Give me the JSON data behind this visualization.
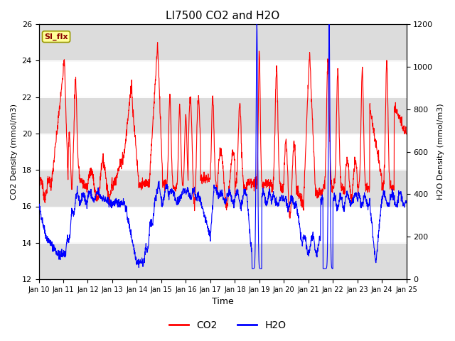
{
  "title": "LI7500 CO2 and H2O",
  "xlabel": "Time",
  "ylabel_left": "CO2 Density (mmol/m3)",
  "ylabel_right": "H2O Density (mmol/m3)",
  "xlim_days": [
    10,
    25
  ],
  "ylim_left": [
    12,
    26
  ],
  "ylim_right": [
    0,
    1200
  ],
  "yticks_left": [
    12,
    14,
    16,
    18,
    20,
    22,
    24,
    26
  ],
  "yticks_right": [
    0,
    200,
    400,
    600,
    800,
    1000,
    1200
  ],
  "xtick_labels": [
    "Jan 10",
    "Jan 11",
    "Jan 12",
    "Jan 13",
    "Jan 14",
    "Jan 15",
    "Jan 16",
    "Jan 17",
    "Jan 18",
    "Jan 19",
    "Jan 20",
    "Jan 21",
    "Jan 22",
    "Jan 23",
    "Jan 24",
    "Jan 25"
  ],
  "co2_color": "#FF0000",
  "h2o_color": "#0000FF",
  "band_color": "#DCDCDC",
  "background_color": "#FFFFFF",
  "legend_label_co2": "CO2",
  "legend_label_h2o": "H2O",
  "si_flx_label": "SI_flx",
  "si_flx_bg": "#FFFF99",
  "si_flx_border": "#999900",
  "figsize": [
    6.4,
    4.8
  ],
  "dpi": 100
}
